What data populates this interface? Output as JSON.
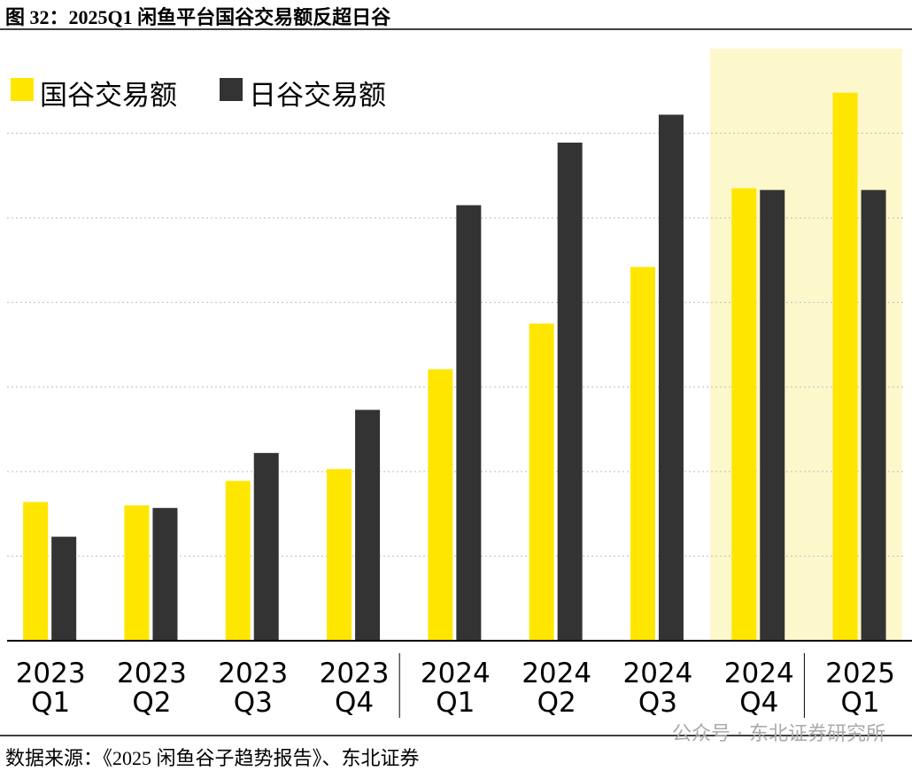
{
  "chart_data": {
    "type": "bar",
    "title": "图 32：2025Q1 闲鱼平台国谷交易额反超日谷",
    "source": "数据来源：《2025 闲鱼谷子趋势报告》、东北证券",
    "watermark": "公众号 · 东北证券研究所",
    "categories": [
      "2023 Q1",
      "2023 Q2",
      "2023 Q3",
      "2023 Q4",
      "2024 Q1",
      "2024 Q2",
      "2024 Q3",
      "2024 Q4",
      "2025 Q1"
    ],
    "series": [
      {
        "name": "国谷交易额",
        "color": "#ffe600",
        "values": [
          1.64,
          1.6,
          1.89,
          2.03,
          3.21,
          3.75,
          4.42,
          5.35,
          6.48
        ]
      },
      {
        "name": "日谷交易额",
        "color": "#333333",
        "values": [
          1.23,
          1.57,
          2.22,
          2.73,
          5.15,
          5.89,
          6.22,
          5.33,
          5.33
        ]
      }
    ],
    "ylim": [
      0,
      7
    ],
    "yticks": [
      1,
      2,
      3,
      4,
      5,
      6
    ],
    "grid": true,
    "legend": "top-left"
  }
}
